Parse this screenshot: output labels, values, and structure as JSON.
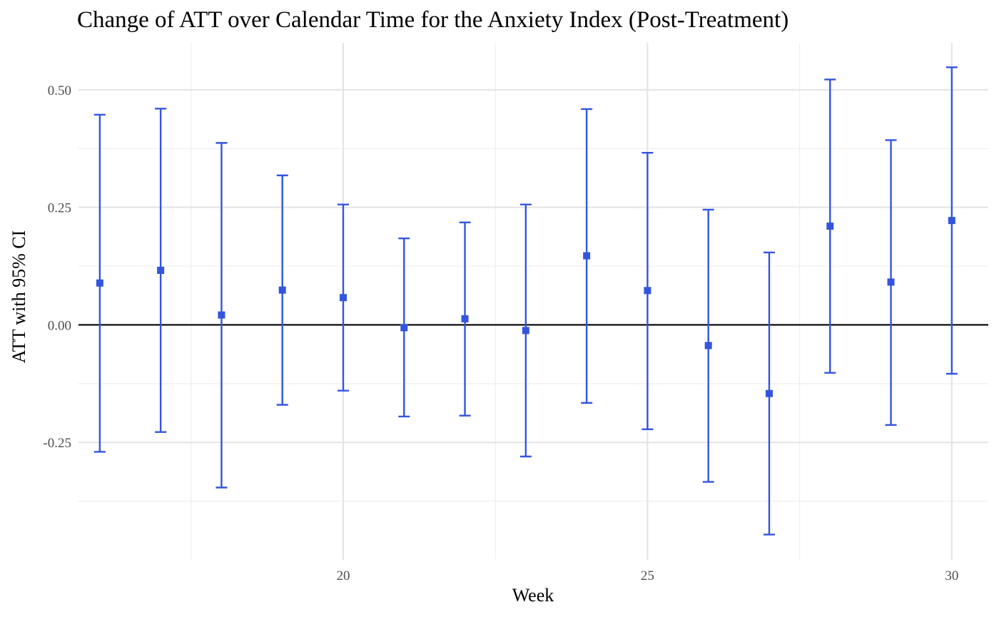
{
  "chart_data": {
    "type": "scatter",
    "title": "Change of ATT over Calendar Time for the Anxiety Index (Post-Treatment)",
    "xlabel": "Week",
    "ylabel": "ATT with 95% CI",
    "xlim": [
      15.65,
      30.6
    ],
    "ylim": [
      -0.5,
      0.6
    ],
    "x_ticks": [
      20,
      25,
      30
    ],
    "x_tick_labels": [
      "20",
      "25",
      "30"
    ],
    "y_ticks": [
      -0.25,
      0,
      0.25,
      0.5
    ],
    "y_tick_labels": [
      "-0.25",
      "0.00",
      "0.25",
      "0.50"
    ],
    "grid": true,
    "reference_line_y": 0,
    "marker": "square",
    "color": "#3355dd",
    "points": [
      {
        "x": 16,
        "y": 0.089,
        "lower": -0.27,
        "upper": 0.447
      },
      {
        "x": 17,
        "y": 0.116,
        "lower": -0.228,
        "upper": 0.46
      },
      {
        "x": 18,
        "y": 0.021,
        "lower": -0.346,
        "upper": 0.387
      },
      {
        "x": 19,
        "y": 0.074,
        "lower": -0.17,
        "upper": 0.318
      },
      {
        "x": 20,
        "y": 0.058,
        "lower": -0.14,
        "upper": 0.256
      },
      {
        "x": 21,
        "y": -0.006,
        "lower": -0.195,
        "upper": 0.184
      },
      {
        "x": 22,
        "y": 0.013,
        "lower": -0.193,
        "upper": 0.218
      },
      {
        "x": 23,
        "y": -0.012,
        "lower": -0.28,
        "upper": 0.256
      },
      {
        "x": 24,
        "y": 0.147,
        "lower": -0.166,
        "upper": 0.459
      },
      {
        "x": 25,
        "y": 0.073,
        "lower": -0.222,
        "upper": 0.366
      },
      {
        "x": 26,
        "y": -0.044,
        "lower": -0.334,
        "upper": 0.245
      },
      {
        "x": 27,
        "y": -0.146,
        "lower": -0.446,
        "upper": 0.154
      },
      {
        "x": 28,
        "y": 0.21,
        "lower": -0.102,
        "upper": 0.522
      },
      {
        "x": 29,
        "y": 0.091,
        "lower": -0.213,
        "upper": 0.393
      },
      {
        "x": 30,
        "y": 0.222,
        "lower": -0.104,
        "upper": 0.548
      }
    ]
  }
}
